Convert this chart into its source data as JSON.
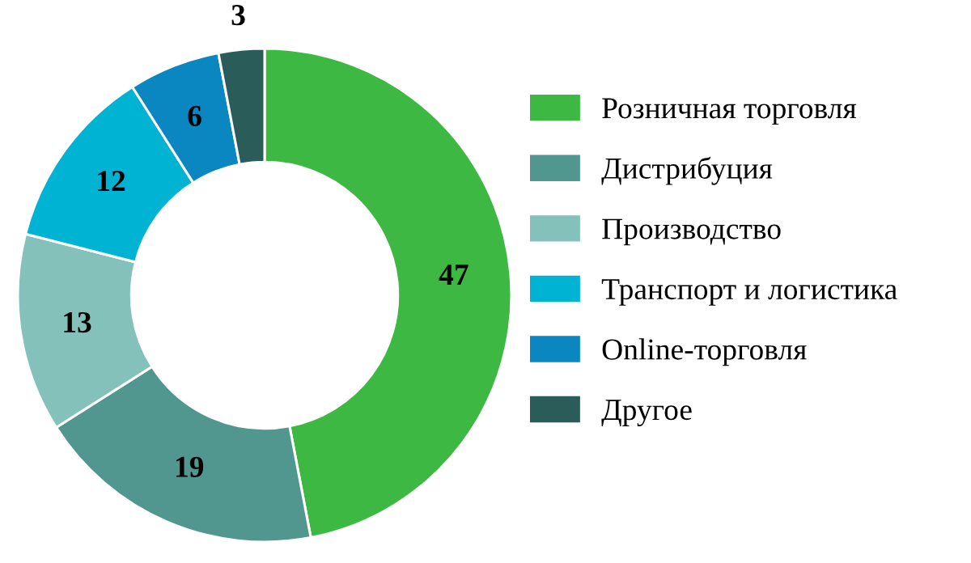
{
  "chart_data": {
    "type": "donut",
    "categories": [
      "Розничная торговля",
      "Дистрибуция",
      "Производство",
      "Транспорт и логистика",
      "Online-торговля",
      "Другое"
    ],
    "values": [
      47,
      19,
      13,
      12,
      6,
      3
    ],
    "colors": [
      "#3db843",
      "#52978f",
      "#84c1bb",
      "#00b3d3",
      "#0a86c0",
      "#2a5d59"
    ],
    "data_labels": true,
    "legend": "right"
  }
}
